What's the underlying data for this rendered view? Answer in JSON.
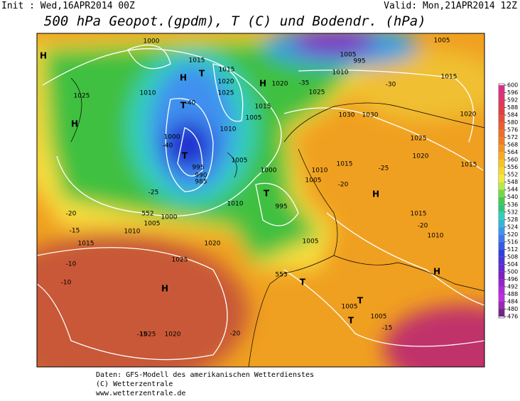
{
  "header": {
    "init": "Init : Wed,16APR2014 00Z",
    "valid": "Valid: Mon,21APR2014 12Z",
    "title": "500 hPa Geopot.(gpdm), T (C) und Bodendr. (hPa)"
  },
  "map": {
    "labels": [
      "1000",
      "995",
      "1005",
      "1005",
      "1015",
      "1015",
      "1020",
      "1025",
      "1015",
      "1010",
      "1020",
      "1025",
      "1025",
      "1010",
      "1015",
      "1030",
      "1030",
      "1020",
      "1005",
      "1010",
      "1025",
      "1000",
      "1020",
      "1005",
      "1000",
      "1015",
      "1015",
      "995",
      "990",
      "985",
      "1010",
      "1005",
      "1010",
      "995",
      "1015",
      "1005",
      "1000",
      "1010",
      "1020",
      "1015",
      "1005",
      "1010",
      "1025",
      "1005",
      "1005",
      "1025",
      "1020",
      "H",
      "H",
      "H",
      "H",
      "H",
      "H",
      "H",
      "T",
      "T",
      "T",
      "T",
      "T",
      "T",
      "T",
      "-40",
      "-40",
      "-35",
      "-30",
      "-25",
      "-20",
      "-15",
      "-10",
      "-10",
      "-15",
      "-20",
      "-15",
      "-25",
      "-20",
      "-20",
      "552",
      "553"
    ]
  },
  "colorbar": {
    "ticks": [
      600,
      596,
      592,
      588,
      584,
      580,
      576,
      572,
      568,
      564,
      560,
      556,
      552,
      548,
      544,
      540,
      536,
      532,
      528,
      524,
      520,
      516,
      512,
      508,
      504,
      500,
      496,
      492,
      488,
      484,
      480,
      476
    ]
  },
  "footer": {
    "lines": [
      "Daten: GFS-Modell des amerikanischen Wetterdienstes",
      "(C) Wetterzentrale",
      "www.wetterzentrale.de"
    ]
  }
}
